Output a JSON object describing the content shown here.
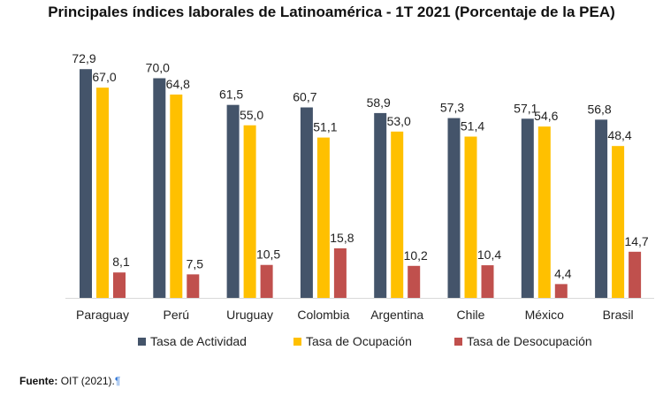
{
  "chart_data": {
    "type": "bar",
    "title": "Principales índices laborales de Latinoamérica - 1T 2021 (Porcentaje de la PEA)",
    "categories": [
      "Paraguay",
      "Perú",
      "Uruguay",
      "Colombia",
      "Argentina",
      "Chile",
      "México",
      "Brasil"
    ],
    "series": [
      {
        "name": "Tasa de Actividad",
        "color": "#44546a",
        "values": [
          72.9,
          70.0,
          61.5,
          60.7,
          58.9,
          57.3,
          57.1,
          56.8
        ],
        "labels": [
          "72,9",
          "70,0",
          "61,5",
          "60,7",
          "58,9",
          "57,3",
          "57,1",
          "56,8"
        ]
      },
      {
        "name": "Tasa de Ocupación",
        "color": "#ffc000",
        "values": [
          67.0,
          64.8,
          55.0,
          51.1,
          53.0,
          51.4,
          54.6,
          48.4
        ],
        "labels": [
          "67,0",
          "64,8",
          "55,0",
          "51,1",
          "53,0",
          "51,4",
          "54,6",
          "48,4"
        ]
      },
      {
        "name": "Tasa de Desocupación",
        "color": "#c0504d",
        "values": [
          8.1,
          7.5,
          10.5,
          15.8,
          10.2,
          10.4,
          4.4,
          14.7
        ],
        "labels": [
          "8,1",
          "7,5",
          "10,5",
          "15,8",
          "10,2",
          "10,4",
          "4,4",
          "14,7"
        ]
      }
    ],
    "ylim": [
      0,
      75
    ],
    "grid": false,
    "legend": "bottom"
  },
  "source": {
    "label": "Fuente:",
    "text": "OIT (2021).",
    "mark": "¶"
  }
}
